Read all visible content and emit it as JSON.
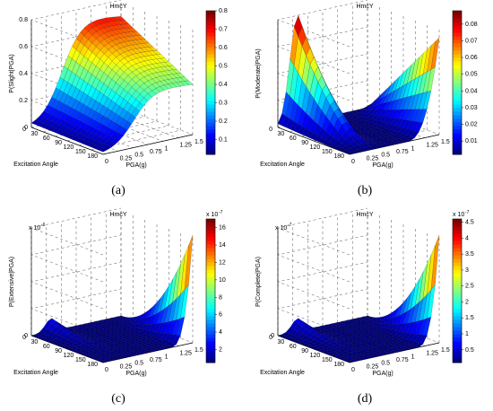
{
  "chart_data": [
    {
      "id": "a",
      "type": "surface",
      "title": "HmcY",
      "caption": "(a)",
      "zlabel": "P(Slight|PGA)",
      "ylabel": "Excitation Angle",
      "xlabel": "PGA(g)",
      "multiplier": "",
      "zticks": [
        "0",
        "0.2",
        "0.4",
        "0.6",
        "0.8"
      ],
      "zlim": [
        0,
        0.8
      ],
      "yticks": [
        "0",
        "30",
        "60",
        "90",
        "120",
        "150",
        "180"
      ],
      "xticks": [
        "0",
        "0.25",
        "0.5",
        "0.75",
        "1",
        "1.25",
        "1.5"
      ],
      "colorbar": {
        "ticks": [
          "0.1",
          "0.2",
          "0.3",
          "0.4",
          "0.5",
          "0.6",
          "0.7",
          "0.8"
        ],
        "range": [
          0.02,
          0.8
        ]
      },
      "shape": "rise",
      "zmax": 0.8
    },
    {
      "id": "b",
      "type": "surface",
      "title": "HmcY",
      "caption": "(b)",
      "zlabel": "P(Moderate|PGA)",
      "ylabel": "Excitation Angle",
      "xlabel": "PGA(g)",
      "multiplier": "",
      "zticks": [],
      "zlim": [
        0,
        0.09
      ],
      "yticks": [
        "0",
        "30",
        "60",
        "90",
        "120",
        "150",
        "180"
      ],
      "xticks": [
        "0",
        "0.25",
        "0.5",
        "0.75",
        "1",
        "1.25",
        "1.5"
      ],
      "colorbar": {
        "ticks": [
          "0.01",
          "0.02",
          "0.03",
          "0.04",
          "0.05",
          "0.06",
          "0.07",
          "0.08"
        ],
        "range": [
          0.002,
          0.088
        ]
      },
      "shape": "hump",
      "zmax": 0.09
    },
    {
      "id": "c",
      "type": "surface",
      "title": "HmcY",
      "caption": "(c)",
      "zlabel": "P(Extensive|PGA)",
      "ylabel": "Excitation Angle",
      "xlabel": "PGA(g)",
      "multiplier": "x 10",
      "multiplier_exp": "-6",
      "zticks": [
        "0"
      ],
      "zlim": [
        0,
        1.8
      ],
      "yticks": [
        "0",
        "30",
        "60",
        "90",
        "120",
        "150",
        "180"
      ],
      "xticks": [
        "0",
        "0.25",
        "0.5",
        "0.75",
        "1",
        "1.25",
        "1.5"
      ],
      "colorbar": {
        "ticks": [
          "2",
          "4",
          "6",
          "8",
          "10",
          "12",
          "14",
          "16"
        ],
        "range": [
          0.5,
          17
        ],
        "exp": "-7"
      },
      "shape": "spike",
      "zmax": 1.7
    },
    {
      "id": "d",
      "type": "surface",
      "title": "HmcY",
      "caption": "(d)",
      "zlabel": "P(Complete|PGA)",
      "ylabel": "Excitation Angle",
      "xlabel": "PGA(g)",
      "multiplier": "x 10",
      "multiplier_exp": "-7",
      "zticks": [
        "0"
      ],
      "zlim": [
        0,
        5
      ],
      "yticks": [
        "0",
        "30",
        "60",
        "90",
        "120",
        "150",
        "180"
      ],
      "xticks": [
        "0",
        "0.25",
        "0.5",
        "0.75",
        "1",
        "1.25",
        "1.5"
      ],
      "colorbar": {
        "ticks": [
          "0.5",
          "1",
          "1.5",
          "2",
          "2.5",
          "3",
          "3.5",
          "4",
          "4.5"
        ],
        "range": [
          0.1,
          4.6
        ],
        "exp": "-7"
      },
      "shape": "spike",
      "zmax": 4.6
    }
  ]
}
